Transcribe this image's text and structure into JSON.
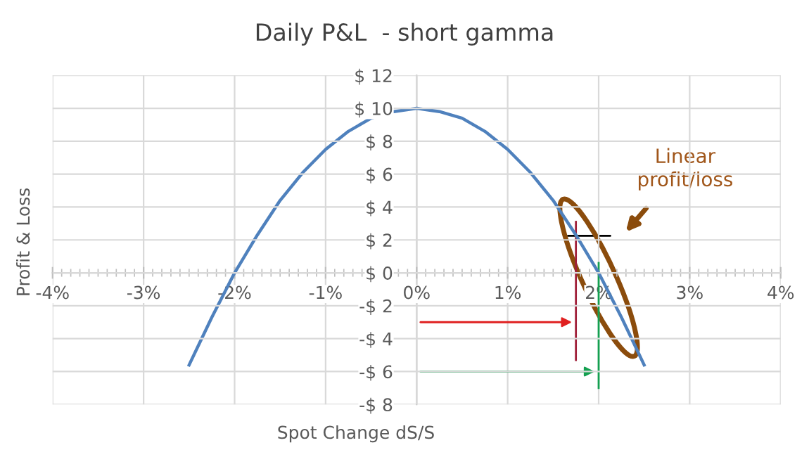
{
  "chart_data": {
    "type": "line",
    "title": "Daily P&L  - short gamma",
    "xlabel": "Spot Change dS/S",
    "ylabel": "Profit & Loss",
    "x": [
      -2.5,
      -2.25,
      -2.0,
      -1.75,
      -1.5,
      -1.25,
      -1.0,
      -0.75,
      -0.5,
      -0.25,
      0.0,
      0.25,
      0.5,
      0.75,
      1.0,
      1.25,
      1.5,
      1.75,
      2.0,
      2.25,
      2.5
    ],
    "series": [
      {
        "color": "#4f81bd",
        "values": [
          -5.6,
          -2.7,
          0.0,
          2.3,
          4.4,
          6.1,
          7.5,
          8.6,
          9.4,
          9.8,
          10.0,
          9.8,
          9.4,
          8.6,
          7.5,
          6.1,
          4.4,
          2.3,
          0.0,
          -2.7,
          -5.6
        ]
      }
    ],
    "xlim": [
      -4,
      4
    ],
    "ylim": [
      -8,
      12
    ],
    "xticks": [
      {
        "value": -4,
        "label": "-4%"
      },
      {
        "value": -3,
        "label": "-3%"
      },
      {
        "value": -2,
        "label": "-2%"
      },
      {
        "value": -1,
        "label": "-1%"
      },
      {
        "value": 0,
        "label": "0%"
      },
      {
        "value": 1,
        "label": "1%"
      },
      {
        "value": 2,
        "label": "2%"
      },
      {
        "value": 3,
        "label": "3%"
      },
      {
        "value": 4,
        "label": "4%"
      }
    ],
    "yticks": [
      {
        "value": -8,
        "label": "-$ 8"
      },
      {
        "value": -6,
        "label": "-$ 6"
      },
      {
        "value": -4,
        "label": "-$ 4"
      },
      {
        "value": -2,
        "label": "-$ 2"
      },
      {
        "value": 0,
        "label": "$ 0"
      },
      {
        "value": 2,
        "label": "$ 2"
      },
      {
        "value": 4,
        "label": "$ 4"
      },
      {
        "value": 6,
        "label": "$ 6"
      },
      {
        "value": 8,
        "label": "$ 8"
      },
      {
        "value": 10,
        "label": "$ 10"
      },
      {
        "value": 12,
        "label": "$ 12"
      }
    ],
    "annotations": [
      "Linear\nprofit/loss"
    ],
    "ref_lines": [
      {
        "axis": "x",
        "value": 1.75,
        "color": "#a0203a"
      },
      {
        "axis": "x",
        "value": 2,
        "color": "#14a050"
      }
    ],
    "grid": true,
    "marker": "none",
    "line_style": "solid",
    "legend": false
  }
}
